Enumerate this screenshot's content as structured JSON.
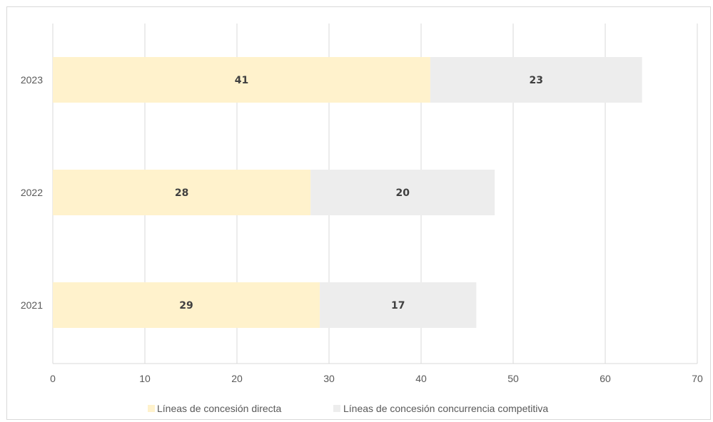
{
  "chart_data": {
    "type": "bar",
    "orientation": "horizontal",
    "stacked": true,
    "categories": [
      "2023",
      "2022",
      "2021"
    ],
    "series": [
      {
        "name": "Líneas de concesión directa",
        "values": [
          41,
          28,
          29
        ],
        "color": "#fff2cc"
      },
      {
        "name": "Líneas de concesión concurrencia competitiva",
        "values": [
          23,
          20,
          17
        ],
        "color": "#ededed"
      }
    ],
    "xlim": [
      0,
      70
    ],
    "xticks": [
      "0",
      "10",
      "20",
      "30",
      "40",
      "50",
      "60",
      "70"
    ],
    "grid": true,
    "legend_position": "bottom",
    "data_labels": true
  }
}
